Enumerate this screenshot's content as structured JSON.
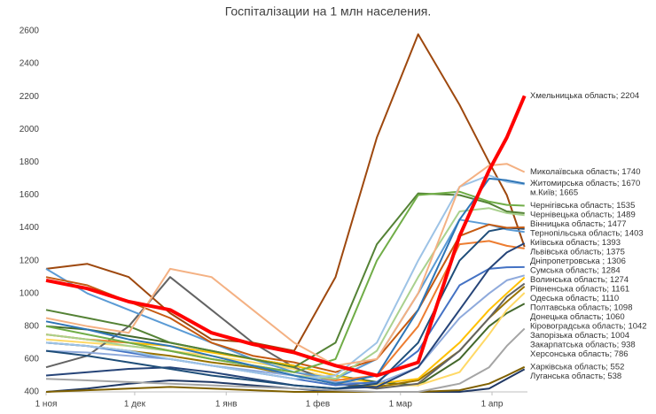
{
  "chart_data": {
    "type": "line",
    "title": "Госпіталізации на 1 млн населения.",
    "x": [
      0,
      14,
      28,
      42,
      56,
      70,
      84,
      98,
      112,
      126,
      140,
      150,
      156,
      162
    ],
    "xlim": [
      0,
      163
    ],
    "xticks": [
      {
        "value": 0,
        "label": "1 ноя"
      },
      {
        "value": 30,
        "label": "1 дек"
      },
      {
        "value": 61,
        "label": "1 янв"
      },
      {
        "value": 92,
        "label": "1 фев"
      },
      {
        "value": 120,
        "label": "1 мар"
      },
      {
        "value": 151,
        "label": "1 апр"
      }
    ],
    "ylim": [
      400,
      2600
    ],
    "yticks": [
      400,
      600,
      800,
      1000,
      1200,
      1400,
      1600,
      1800,
      2000,
      2200,
      2400,
      2600
    ],
    "series": [
      {
        "label": "Хмельницька область; 2204",
        "color": "#ff0000",
        "values": [
          1080,
          1030,
          950,
          900,
          760,
          690,
          640,
          560,
          500,
          580,
          1350,
          1750,
          1950,
          2204
        ]
      },
      {
        "label": "Миколаївська область; 1740",
        "color": "#f4b183",
        "values": [
          850,
          800,
          760,
          1150,
          1100,
          900,
          700,
          560,
          600,
          1000,
          1650,
          1780,
          1790,
          1740
        ]
      },
      {
        "label": "Житомирська область; 1670",
        "color": "#2e75b6",
        "values": [
          830,
          780,
          720,
          680,
          620,
          560,
          500,
          450,
          500,
          900,
          1450,
          1700,
          1690,
          1670
        ]
      },
      {
        "label": "м.Київ; 1665",
        "color": "#9dc3e6",
        "values": [
          700,
          680,
          650,
          600,
          560,
          520,
          480,
          500,
          700,
          1200,
          1650,
          1720,
          1680,
          1665
        ]
      },
      {
        "label": "Чернігівська область; 1535",
        "color": "#70ad47",
        "values": [
          800,
          750,
          700,
          650,
          600,
          560,
          520,
          600,
          1200,
          1600,
          1620,
          1560,
          1540,
          1535
        ]
      },
      {
        "label": "Чернівецька область; 1489",
        "color": "#548235",
        "values": [
          900,
          850,
          800,
          700,
          650,
          600,
          550,
          700,
          1300,
          1610,
          1600,
          1550,
          1500,
          1489
        ]
      },
      {
        "label": "Вінницька область; 1477",
        "color": "#a9d18e",
        "values": [
          750,
          720,
          680,
          650,
          600,
          560,
          500,
          480,
          650,
          1100,
          1500,
          1520,
          1490,
          1477
        ]
      },
      {
        "label": "Тернопільська область; 1403",
        "color": "#c55a11",
        "values": [
          1100,
          1050,
          950,
          850,
          700,
          620,
          580,
          520,
          600,
          900,
          1350,
          1420,
          1400,
          1403
        ]
      },
      {
        "label": "Київська область; 1393",
        "color": "#1f4e79",
        "values": [
          650,
          620,
          580,
          540,
          500,
          470,
          440,
          420,
          450,
          700,
          1200,
          1380,
          1400,
          1393
        ]
      },
      {
        "label": "Львівська область; 1375",
        "color": "#5b9bd5",
        "values": [
          1150,
          1000,
          900,
          800,
          700,
          600,
          520,
          480,
          600,
          1000,
          1450,
          1420,
          1390,
          1375
        ]
      },
      {
        "label": "Дніпропетровська ; 1306",
        "color": "#264478",
        "values": [
          500,
          520,
          540,
          550,
          520,
          480,
          440,
          420,
          430,
          550,
          900,
          1150,
          1250,
          1306
        ]
      },
      {
        "label": "Сумська область; 1284",
        "color": "#9e480e",
        "values": [
          1150,
          1180,
          1100,
          880,
          720,
          700,
          650,
          1100,
          1950,
          2580,
          2150,
          1800,
          1600,
          1284
        ]
      },
      {
        "label": "Волинська область; 1274",
        "color": "#ed7d31",
        "values": [
          750,
          720,
          700,
          650,
          600,
          560,
          520,
          470,
          500,
          800,
          1300,
          1320,
          1290,
          1274
        ]
      },
      {
        "label": "Рівненська область; 1161",
        "color": "#4472c4",
        "values": [
          700,
          680,
          640,
          600,
          560,
          520,
          480,
          440,
          460,
          650,
          1050,
          1150,
          1160,
          1161
        ]
      },
      {
        "label": "Одеська область; 1110",
        "color": "#8faadc",
        "values": [
          650,
          640,
          620,
          600,
          560,
          530,
          500,
          460,
          450,
          550,
          850,
          1000,
          1080,
          1110
        ]
      },
      {
        "label": "Полтавська область; 1098",
        "color": "#ffc000",
        "values": [
          750,
          720,
          700,
          680,
          640,
          600,
          560,
          500,
          450,
          480,
          700,
          900,
          1000,
          1098
        ]
      },
      {
        "label": "Донецька область; 1060",
        "color": "#636363",
        "values": [
          550,
          620,
          800,
          1100,
          900,
          700,
          550,
          450,
          420,
          450,
          650,
          850,
          980,
          1060
        ]
      },
      {
        "label": "Кіровоградська область; 1042",
        "color": "#997300",
        "values": [
          700,
          680,
          650,
          620,
          580,
          550,
          500,
          450,
          430,
          470,
          650,
          850,
          950,
          1042
        ]
      },
      {
        "label": "Запорізька область; 1004",
        "color": "#ffd966",
        "values": [
          720,
          700,
          680,
          650,
          620,
          580,
          540,
          480,
          440,
          440,
          520,
          750,
          900,
          1004
        ]
      },
      {
        "label": "Закарпатська область; 938",
        "color": "#43682b",
        "values": [
          800,
          780,
          740,
          700,
          650,
          600,
          560,
          500,
          460,
          440,
          600,
          800,
          880,
          938
        ]
      },
      {
        "label": "Херсонська область; 786",
        "color": "#a5a5a5",
        "values": [
          480,
          470,
          460,
          450,
          440,
          430,
          420,
          410,
          400,
          400,
          450,
          550,
          680,
          786
        ]
      },
      {
        "label": "Харківська область; 552",
        "color": "#7f6000",
        "values": [
          400,
          410,
          420,
          430,
          420,
          410,
          400,
          400,
          400,
          400,
          410,
          450,
          500,
          552
        ]
      },
      {
        "label": "Луганська область; 538",
        "color": "#203864",
        "values": [
          400,
          420,
          450,
          470,
          460,
          440,
          420,
          400,
          400,
          400,
          400,
          420,
          480,
          538
        ]
      }
    ]
  }
}
